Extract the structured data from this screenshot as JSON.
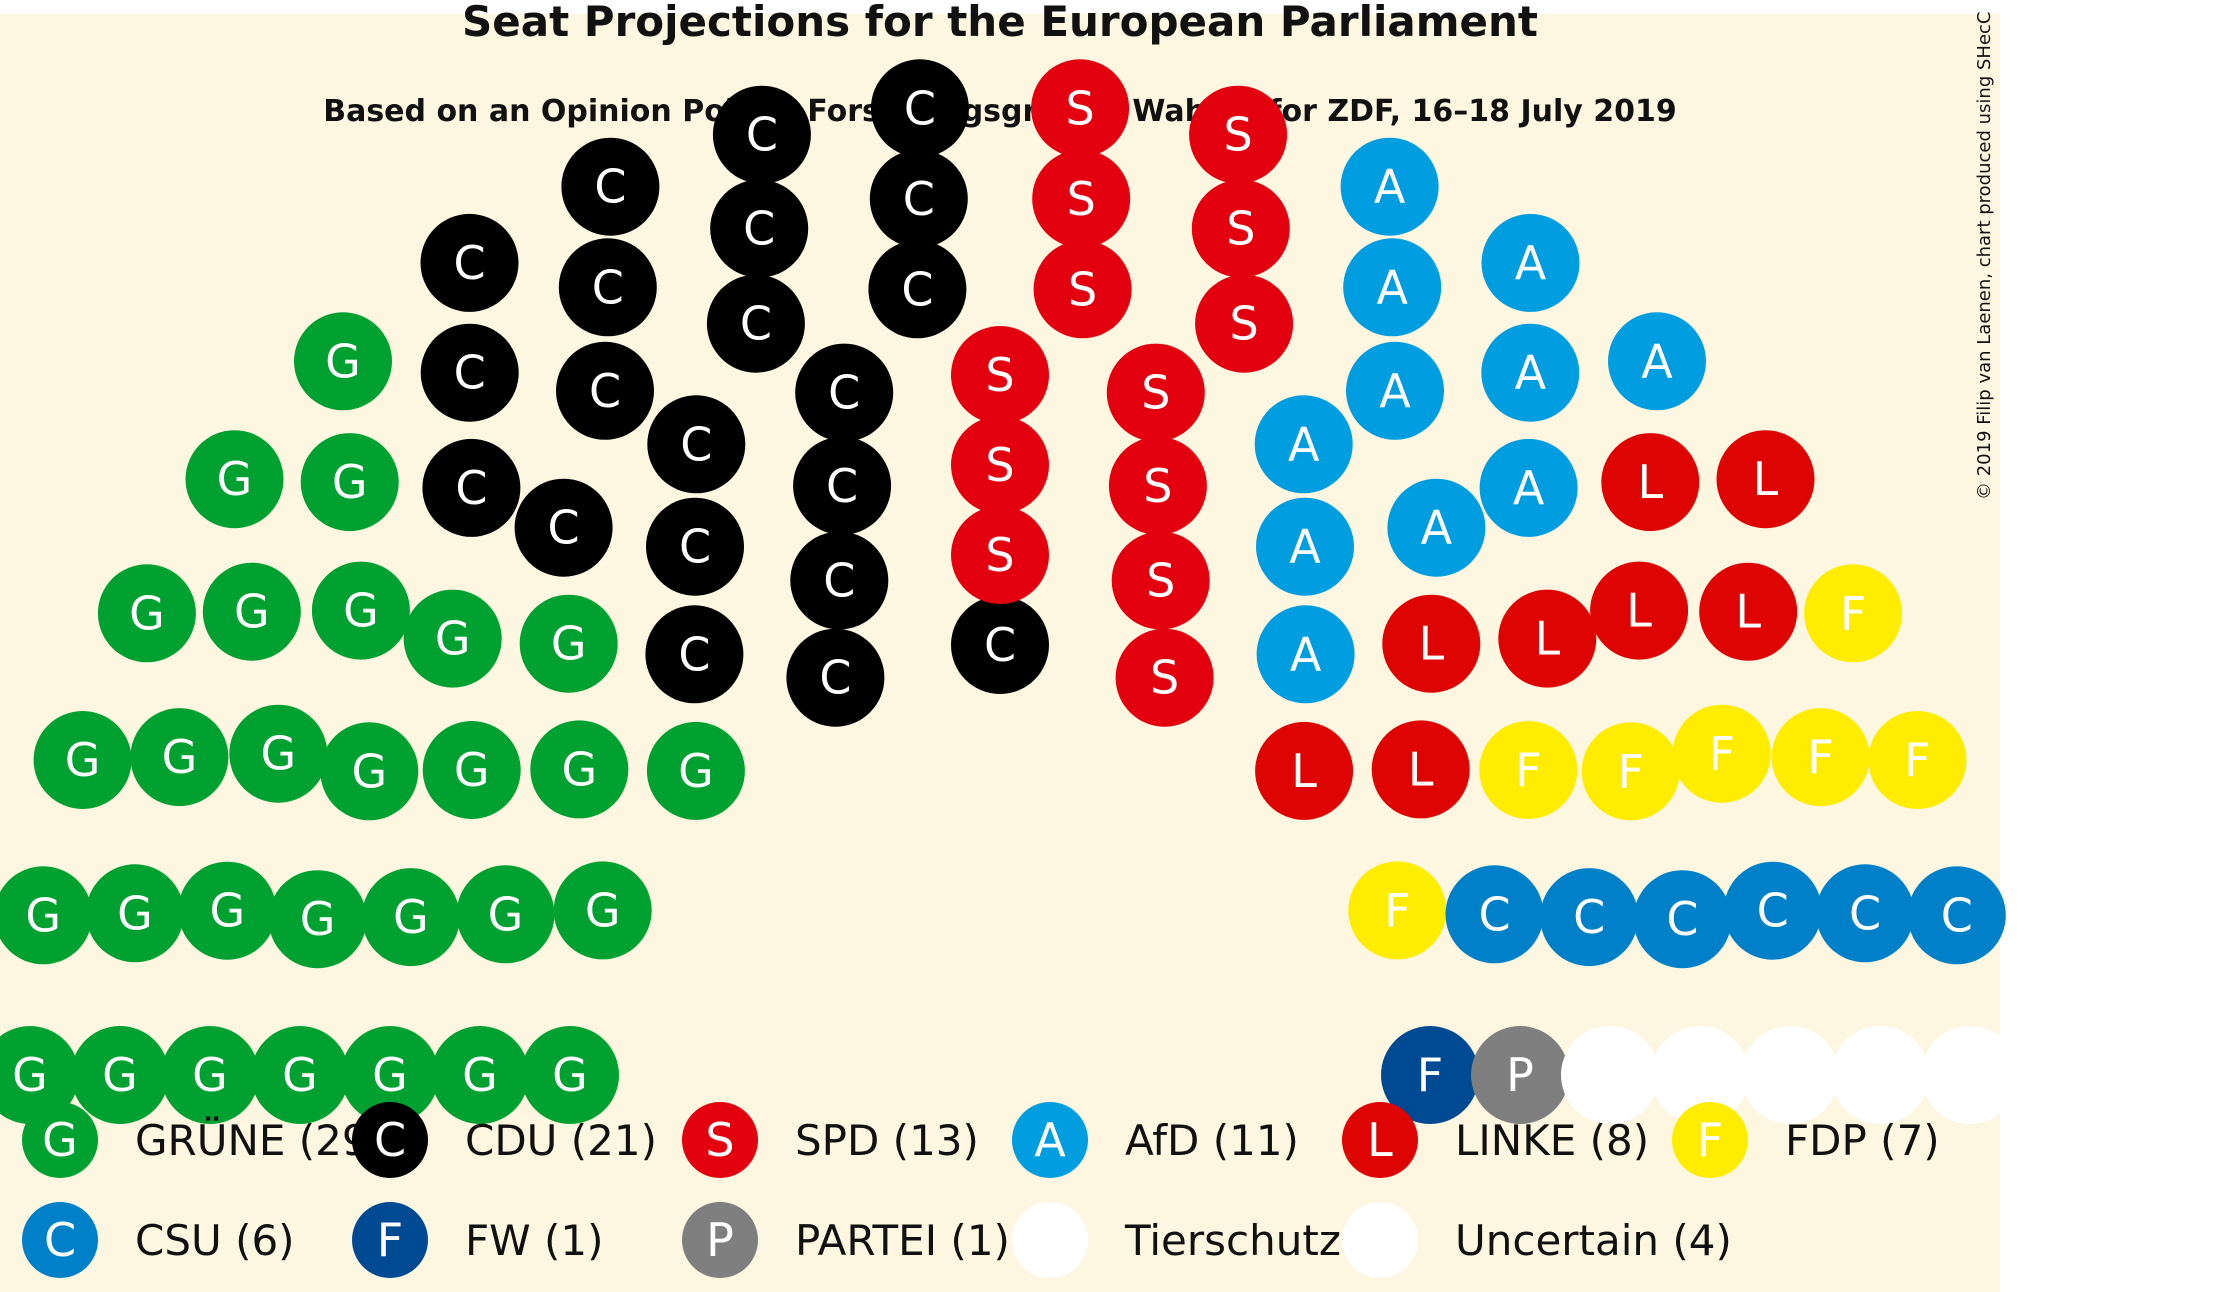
{
  "chart_data": {
    "type": "parliament",
    "title": "Seat Projections for the European Parliament",
    "subtitle": "Based on an Opinion Poll by Forschungsgruppe Wahlen for ZDF, 16–18 July 2019",
    "credit": "© 2019 Filip van Laenen, chart produced using SHecC",
    "colors": {
      "background": "#fdf6e1",
      "letter": "#ffffff",
      "uncertain_fill": "#ffffff"
    },
    "parties": [
      {
        "letter": "G",
        "color": "#00a130",
        "seats": 29,
        "legend": "GRÜNE (29)"
      },
      {
        "letter": "C",
        "color": "#000000",
        "seats": 21,
        "legend": "CDU (21)"
      },
      {
        "letter": "S",
        "color": "#e3000f",
        "seats": 13,
        "legend": "SPD (13)"
      },
      {
        "letter": "A",
        "color": "#009ee0",
        "seats": 11,
        "legend": "AfD (11)"
      },
      {
        "letter": "L",
        "color": "#df0404",
        "seats": 8,
        "legend": "LINKE (8)"
      },
      {
        "letter": "F",
        "color": "#ffed00",
        "seats": 7,
        "legend": "FDP (7)"
      },
      {
        "letter": "C",
        "color": "#0080c8",
        "seats": 6,
        "legend": "CSU (6)"
      },
      {
        "letter": "F",
        "color": "#004a93",
        "seats": 1,
        "legend": "FW (1)"
      },
      {
        "letter": "P",
        "color": "#7f7f7f",
        "seats": 1,
        "legend": "PARTEI (1)"
      },
      {
        "letter": "",
        "color": "#ffffff",
        "seats": 1,
        "legend": "Tierschutz (1)"
      },
      {
        "letter": "",
        "color": "#ffffff",
        "seats": 4,
        "legend": "Uncertain (4)"
      }
    ],
    "seats": [
      "G",
      "G",
      "G",
      "G",
      "G",
      "G",
      "G",
      "G",
      "G",
      "G",
      "G",
      "G",
      "G",
      "G",
      "G",
      "G",
      "G",
      "G",
      "G",
      "G",
      "G",
      "G",
      "G",
      "G",
      "G",
      "G",
      "G",
      "G",
      "G",
      "C",
      "C",
      "C",
      "C",
      "C",
      "C",
      "C",
      "C",
      "C",
      "C",
      "C",
      "C",
      "C",
      "C",
      "C",
      "C",
      "C",
      "C",
      "C",
      "C",
      "C",
      "S",
      "S",
      "S",
      "S",
      "S",
      "S",
      "S",
      "S",
      "S",
      "S",
      "S",
      "S",
      "S",
      "A",
      "A",
      "A",
      "A",
      "A",
      "A",
      "A",
      "A",
      "A",
      "A",
      "A",
      "L",
      "L",
      "L",
      "L",
      "L",
      "L",
      "L",
      "L",
      "F",
      "F",
      "F",
      "F",
      "F",
      "F",
      "F",
      "C",
      "C",
      "C",
      "C",
      "C",
      "C",
      "F",
      "P",
      "",
      "",
      "",
      "",
      ""
    ],
    "seat_parties": [
      0,
      0,
      0,
      0,
      0,
      0,
      0,
      0,
      0,
      0,
      0,
      0,
      0,
      0,
      0,
      0,
      0,
      0,
      0,
      0,
      0,
      0,
      0,
      0,
      0,
      0,
      0,
      0,
      0,
      1,
      1,
      1,
      1,
      1,
      1,
      1,
      1,
      1,
      1,
      1,
      1,
      1,
      1,
      1,
      1,
      1,
      1,
      1,
      1,
      1,
      2,
      2,
      2,
      2,
      2,
      2,
      2,
      2,
      2,
      2,
      2,
      2,
      2,
      3,
      3,
      3,
      3,
      3,
      3,
      3,
      3,
      3,
      3,
      3,
      4,
      4,
      4,
      4,
      4,
      4,
      4,
      4,
      5,
      5,
      5,
      5,
      5,
      5,
      5,
      6,
      6,
      6,
      6,
      6,
      6,
      7,
      8,
      9,
      10,
      10,
      10,
      10
    ]
  }
}
